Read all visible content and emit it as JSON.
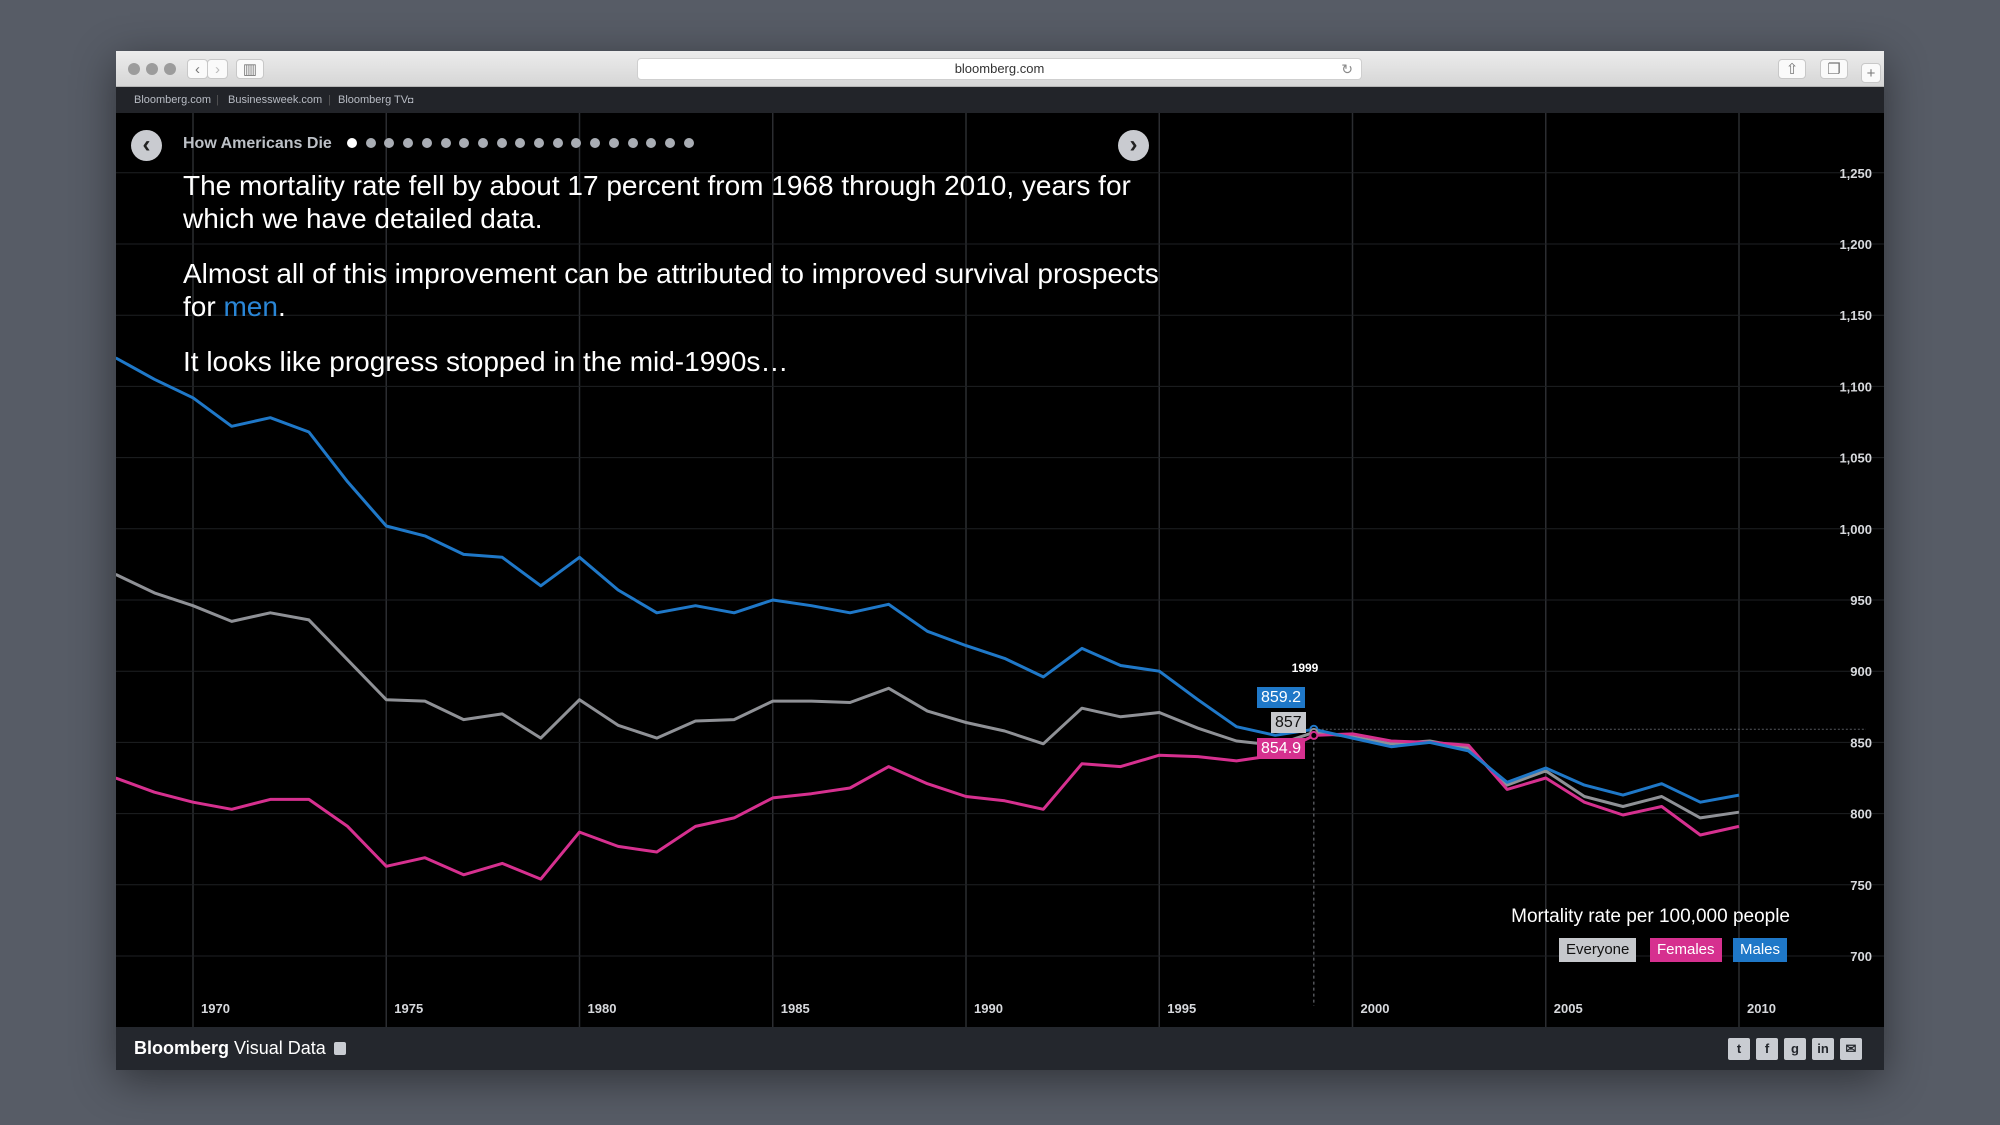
{
  "browser": {
    "url": "bloomberg.com",
    "bookmarks": [
      "Bloomberg.com",
      "Businessweek.com",
      "Bloomberg TV"
    ]
  },
  "story": {
    "title": "How Americans Die",
    "dot_count": 19,
    "active_dot": 0,
    "paragraph1": "The mortality rate fell by about 17 percent from 1968 through 2010, years for which we have detailed data.",
    "paragraph2_before": "Almost all of this improvement can be attributed to improved survival prospects for ",
    "paragraph2_link": "men",
    "paragraph2_after": ".",
    "paragraph3": "It looks like progress stopped in the mid-1990s…"
  },
  "tooltip": {
    "year": "1999",
    "males": "859.2",
    "everyone": "857",
    "females": "854.9"
  },
  "legend": {
    "title": "Mortality rate per 100,000 people",
    "everyone": "Everyone",
    "females": "Females",
    "males": "Males"
  },
  "footer": {
    "brand_bold": "Bloomberg",
    "brand_rest": " Visual Data",
    "social_icons": [
      "twitter-icon",
      "facebook-icon",
      "google-plus-icon",
      "linkedin-icon",
      "email-icon"
    ]
  },
  "colors": {
    "males": "#1f78c8",
    "females": "#d6308f",
    "everyone": "#8f9196",
    "everyone_tag": "#c6c8cc"
  },
  "chart_data": {
    "type": "line",
    "x": [
      1968,
      1969,
      1970,
      1971,
      1972,
      1973,
      1974,
      1975,
      1976,
      1977,
      1978,
      1979,
      1980,
      1981,
      1982,
      1983,
      1984,
      1985,
      1986,
      1987,
      1988,
      1989,
      1990,
      1991,
      1992,
      1993,
      1994,
      1995,
      1996,
      1997,
      1998,
      1999,
      2000,
      2001,
      2002,
      2003,
      2004,
      2005,
      2006,
      2007,
      2008,
      2009,
      2010
    ],
    "series": [
      {
        "name": "Males",
        "values": [
          1120,
          1105,
          1092,
          1072,
          1078,
          1068,
          1033,
          1002,
          995,
          982,
          980,
          960,
          980,
          957,
          941,
          946,
          941,
          950,
          946,
          941,
          947,
          928,
          918,
          909,
          896,
          916,
          904,
          900,
          880,
          861,
          855,
          859.2,
          853,
          847,
          850,
          844,
          822,
          832,
          820,
          813,
          821,
          808,
          813
        ]
      },
      {
        "name": "Everyone",
        "values": [
          968,
          955,
          946,
          935,
          941,
          936,
          908,
          880,
          879,
          866,
          870,
          853,
          880,
          862,
          853,
          865,
          866,
          879,
          879,
          878,
          888,
          872,
          864,
          858,
          849,
          874,
          868,
          871,
          860,
          851,
          848,
          857,
          854,
          849,
          851,
          846,
          820,
          830,
          812,
          805,
          812,
          797,
          801
        ]
      },
      {
        "name": "Females",
        "values": [
          825,
          815,
          808,
          803,
          810,
          810,
          791,
          763,
          769,
          757,
          765,
          754,
          787,
          777,
          773,
          791,
          797,
          811,
          814,
          818,
          833,
          821,
          812,
          809,
          803,
          835,
          833,
          841,
          840,
          837,
          841,
          854.9,
          856,
          851,
          850,
          848,
          817,
          825,
          808,
          799,
          805,
          785,
          791
        ]
      }
    ],
    "xticks": [
      1970,
      1975,
      1980,
      1985,
      1990,
      1995,
      2000,
      2005,
      2010
    ],
    "yticks": [
      700,
      750,
      800,
      850,
      900,
      950,
      1000,
      1050,
      1100,
      1150,
      1200,
      1250
    ],
    "ylim": [
      675,
      1265
    ],
    "xlim": [
      1968,
      2013
    ],
    "grid": true,
    "legend_position": "bottom-right"
  }
}
